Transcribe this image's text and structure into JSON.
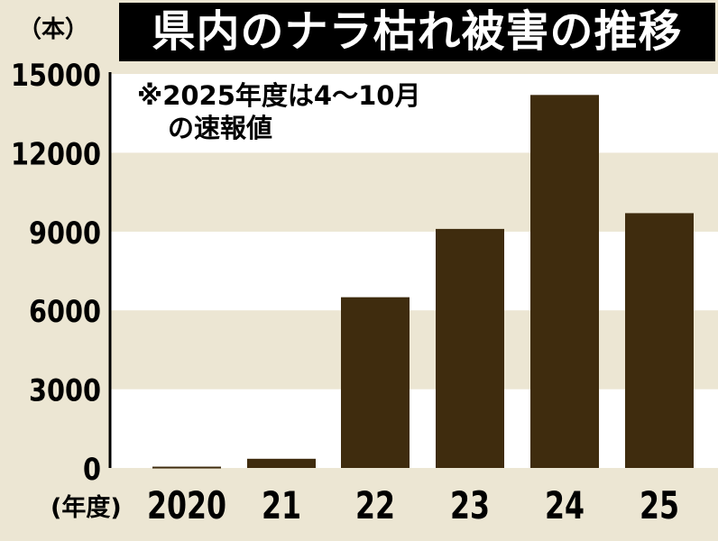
{
  "title": "県内のナラ枯れ被害の推移",
  "unit_label": "（本）",
  "note_lines": [
    "※2025年度は4～10月",
    "の速報値"
  ],
  "colors": {
    "bar": "#3f2c0e",
    "band_light": "#ffffff",
    "band_dark": "#ece6d3",
    "title_bg": "#000000",
    "title_text": "#ffffff"
  },
  "chart_data": {
    "type": "bar",
    "title": "県内のナラ枯れ被害の推移",
    "xlabel": "(年度)",
    "ylabel": "（本）",
    "categories": [
      "2020",
      "21",
      "22",
      "23",
      "24",
      "25"
    ],
    "values": [
      50,
      350,
      6500,
      9100,
      14200,
      9700
    ],
    "ylim": [
      0,
      15000
    ],
    "yticks": [
      0,
      3000,
      6000,
      9000,
      12000,
      15000
    ],
    "grid": false,
    "legend": "none"
  }
}
